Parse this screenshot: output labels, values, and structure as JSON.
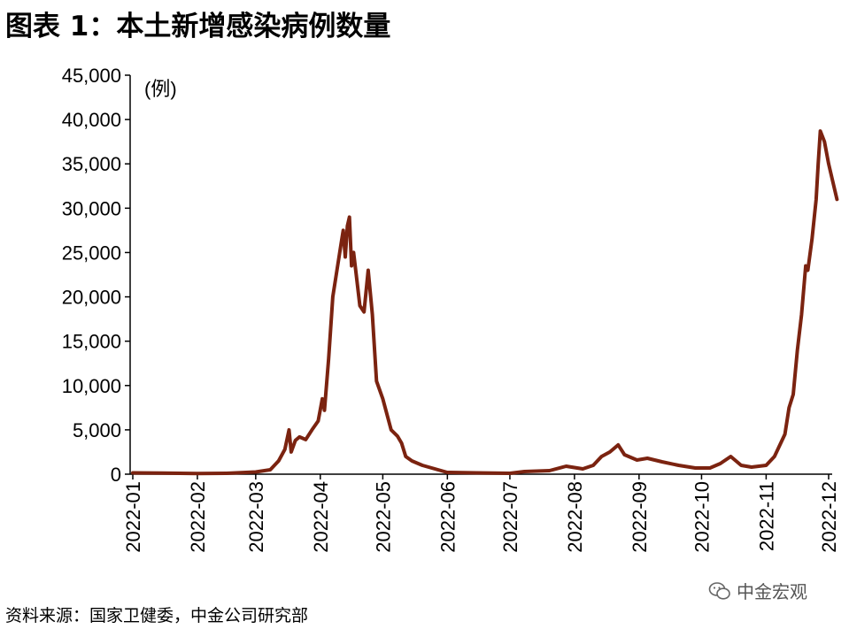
{
  "header": {
    "title": "图表 1：本土新增感染病例数量"
  },
  "footer": {
    "source": "资料来源：国家卫健委，中金公司研究部",
    "watermark": "中金宏观"
  },
  "chart_data": {
    "type": "line",
    "title": "本土新增感染病例数量",
    "ylabel": "(例)",
    "xlabel": "",
    "ylim": [
      0,
      45000
    ],
    "xlim": [
      "2022-01-01",
      "2022-12-06"
    ],
    "grid": false,
    "legend": "none",
    "y_ticks": [
      "0",
      "5,000",
      "10,000",
      "15,000",
      "20,000",
      "25,000",
      "30,000",
      "35,000",
      "40,000",
      "45,000"
    ],
    "x_ticks": [
      "2022-01",
      "2022-02",
      "2022-03",
      "2022-04",
      "2022-05",
      "2022-06",
      "2022-07",
      "2022-08",
      "2022-09",
      "2022-10",
      "2022-11",
      "2022-12"
    ],
    "series": [
      {
        "color": "#7b2310",
        "points": [
          [
            "2022-01-01",
            150
          ],
          [
            "2022-01-15",
            120
          ],
          [
            "2022-02-01",
            80
          ],
          [
            "2022-02-15",
            100
          ],
          [
            "2022-03-01",
            250
          ],
          [
            "2022-03-08",
            500
          ],
          [
            "2022-03-12",
            1500
          ],
          [
            "2022-03-15",
            2800
          ],
          [
            "2022-03-17",
            5000
          ],
          [
            "2022-03-18",
            2500
          ],
          [
            "2022-03-20",
            3800
          ],
          [
            "2022-03-22",
            4200
          ],
          [
            "2022-03-25",
            3900
          ],
          [
            "2022-03-28",
            5000
          ],
          [
            "2022-03-31",
            6000
          ],
          [
            "2022-04-02",
            8500
          ],
          [
            "2022-04-03",
            7200
          ],
          [
            "2022-04-05",
            13000
          ],
          [
            "2022-04-07",
            20000
          ],
          [
            "2022-04-09",
            23000
          ],
          [
            "2022-04-11",
            26000
          ],
          [
            "2022-04-12",
            27500
          ],
          [
            "2022-04-13",
            24500
          ],
          [
            "2022-04-14",
            28000
          ],
          [
            "2022-04-15",
            29000
          ],
          [
            "2022-04-16",
            23500
          ],
          [
            "2022-04-17",
            25000
          ],
          [
            "2022-04-18",
            23000
          ],
          [
            "2022-04-20",
            19000
          ],
          [
            "2022-04-22",
            18300
          ],
          [
            "2022-04-24",
            23000
          ],
          [
            "2022-04-26",
            18000
          ],
          [
            "2022-04-28",
            10500
          ],
          [
            "2022-05-01",
            8500
          ],
          [
            "2022-05-05",
            5000
          ],
          [
            "2022-05-08",
            4300
          ],
          [
            "2022-05-10",
            3500
          ],
          [
            "2022-05-12",
            2000
          ],
          [
            "2022-05-15",
            1500
          ],
          [
            "2022-05-20",
            1000
          ],
          [
            "2022-06-01",
            200
          ],
          [
            "2022-06-15",
            150
          ],
          [
            "2022-07-01",
            100
          ],
          [
            "2022-07-08",
            300
          ],
          [
            "2022-07-20",
            400
          ],
          [
            "2022-07-28",
            900
          ],
          [
            "2022-08-05",
            600
          ],
          [
            "2022-08-10",
            1000
          ],
          [
            "2022-08-14",
            2000
          ],
          [
            "2022-08-18",
            2500
          ],
          [
            "2022-08-22",
            3300
          ],
          [
            "2022-08-25",
            2200
          ],
          [
            "2022-08-31",
            1600
          ],
          [
            "2022-09-05",
            1800
          ],
          [
            "2022-09-12",
            1400
          ],
          [
            "2022-09-20",
            1000
          ],
          [
            "2022-09-28",
            700
          ],
          [
            "2022-10-05",
            700
          ],
          [
            "2022-10-10",
            1200
          ],
          [
            "2022-10-15",
            2000
          ],
          [
            "2022-10-20",
            1000
          ],
          [
            "2022-10-25",
            800
          ],
          [
            "2022-11-01",
            1000
          ],
          [
            "2022-11-05",
            2000
          ],
          [
            "2022-11-08",
            3500
          ],
          [
            "2022-11-10",
            4500
          ],
          [
            "2022-11-12",
            7500
          ],
          [
            "2022-11-14",
            9000
          ],
          [
            "2022-11-16",
            14000
          ],
          [
            "2022-11-18",
            18000
          ],
          [
            "2022-11-20",
            23500
          ],
          [
            "2022-11-21",
            23000
          ],
          [
            "2022-11-23",
            26500
          ],
          [
            "2022-11-25",
            31000
          ],
          [
            "2022-11-26",
            35000
          ],
          [
            "2022-11-27",
            38700
          ],
          [
            "2022-11-29",
            37500
          ],
          [
            "2022-12-01",
            35000
          ],
          [
            "2022-12-03",
            33000
          ],
          [
            "2022-12-05",
            31000
          ]
        ]
      }
    ]
  }
}
